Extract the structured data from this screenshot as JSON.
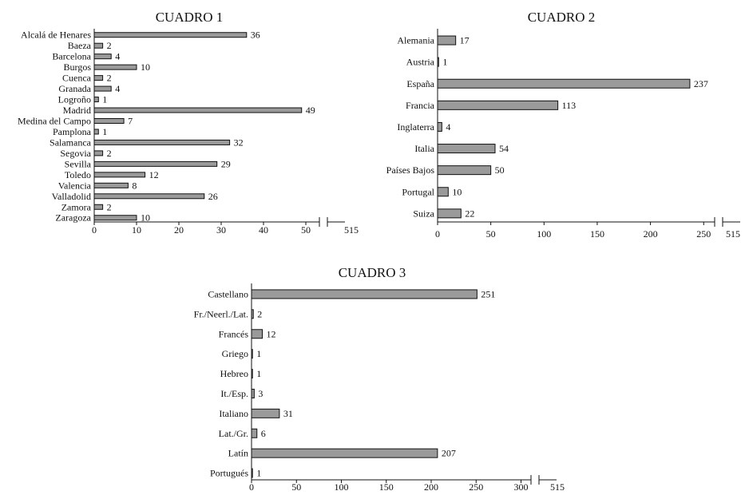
{
  "chart_data": [
    {
      "type": "bar",
      "orientation": "horizontal",
      "title": "CUADRO 1",
      "categories": [
        "Alcalá de Henares",
        "Baeza",
        "Barcelona",
        "Burgos",
        "Cuenca",
        "Granada",
        "Logroño",
        "Madrid",
        "Medina del Campo",
        "Pamplona",
        "Salamanca",
        "Segovia",
        "Sevilla",
        "Toledo",
        "Valencia",
        "Valladolid",
        "Zamora",
        "Zaragoza"
      ],
      "values": [
        36,
        2,
        4,
        10,
        2,
        4,
        1,
        49,
        7,
        1,
        32,
        2,
        29,
        12,
        8,
        26,
        2,
        10
      ],
      "xticks": [
        "0",
        "10",
        "20",
        "30",
        "40",
        "50"
      ],
      "xlim": [
        0,
        50
      ],
      "axis_break": true,
      "break_tick_label": "515"
    },
    {
      "type": "bar",
      "orientation": "horizontal",
      "title": "CUADRO 2",
      "categories": [
        "Alemania",
        "Austria",
        "España",
        "Francia",
        "Inglaterra",
        "Italia",
        "Países Bajos",
        "Portugal",
        "Suiza"
      ],
      "values": [
        17,
        1,
        237,
        113,
        4,
        54,
        50,
        10,
        22
      ],
      "xticks": [
        "0",
        "50",
        "100",
        "150",
        "200",
        "250"
      ],
      "xlim": [
        0,
        250
      ],
      "axis_break": true,
      "break_tick_label": "515"
    },
    {
      "type": "bar",
      "orientation": "horizontal",
      "title": "CUADRO 3",
      "categories": [
        "Castellano",
        "Fr./Neerl./Lat.",
        "Francés",
        "Griego",
        "Hebreo",
        "It./Esp.",
        "Italiano",
        "Lat./Gr.",
        "Latín",
        "Portugués"
      ],
      "values": [
        251,
        2,
        12,
        1,
        1,
        3,
        31,
        6,
        207,
        1
      ],
      "xticks": [
        "0",
        "50",
        "100",
        "150",
        "200",
        "250",
        "300"
      ],
      "xlim": [
        0,
        300
      ],
      "axis_break": true,
      "break_tick_label": "515"
    }
  ]
}
